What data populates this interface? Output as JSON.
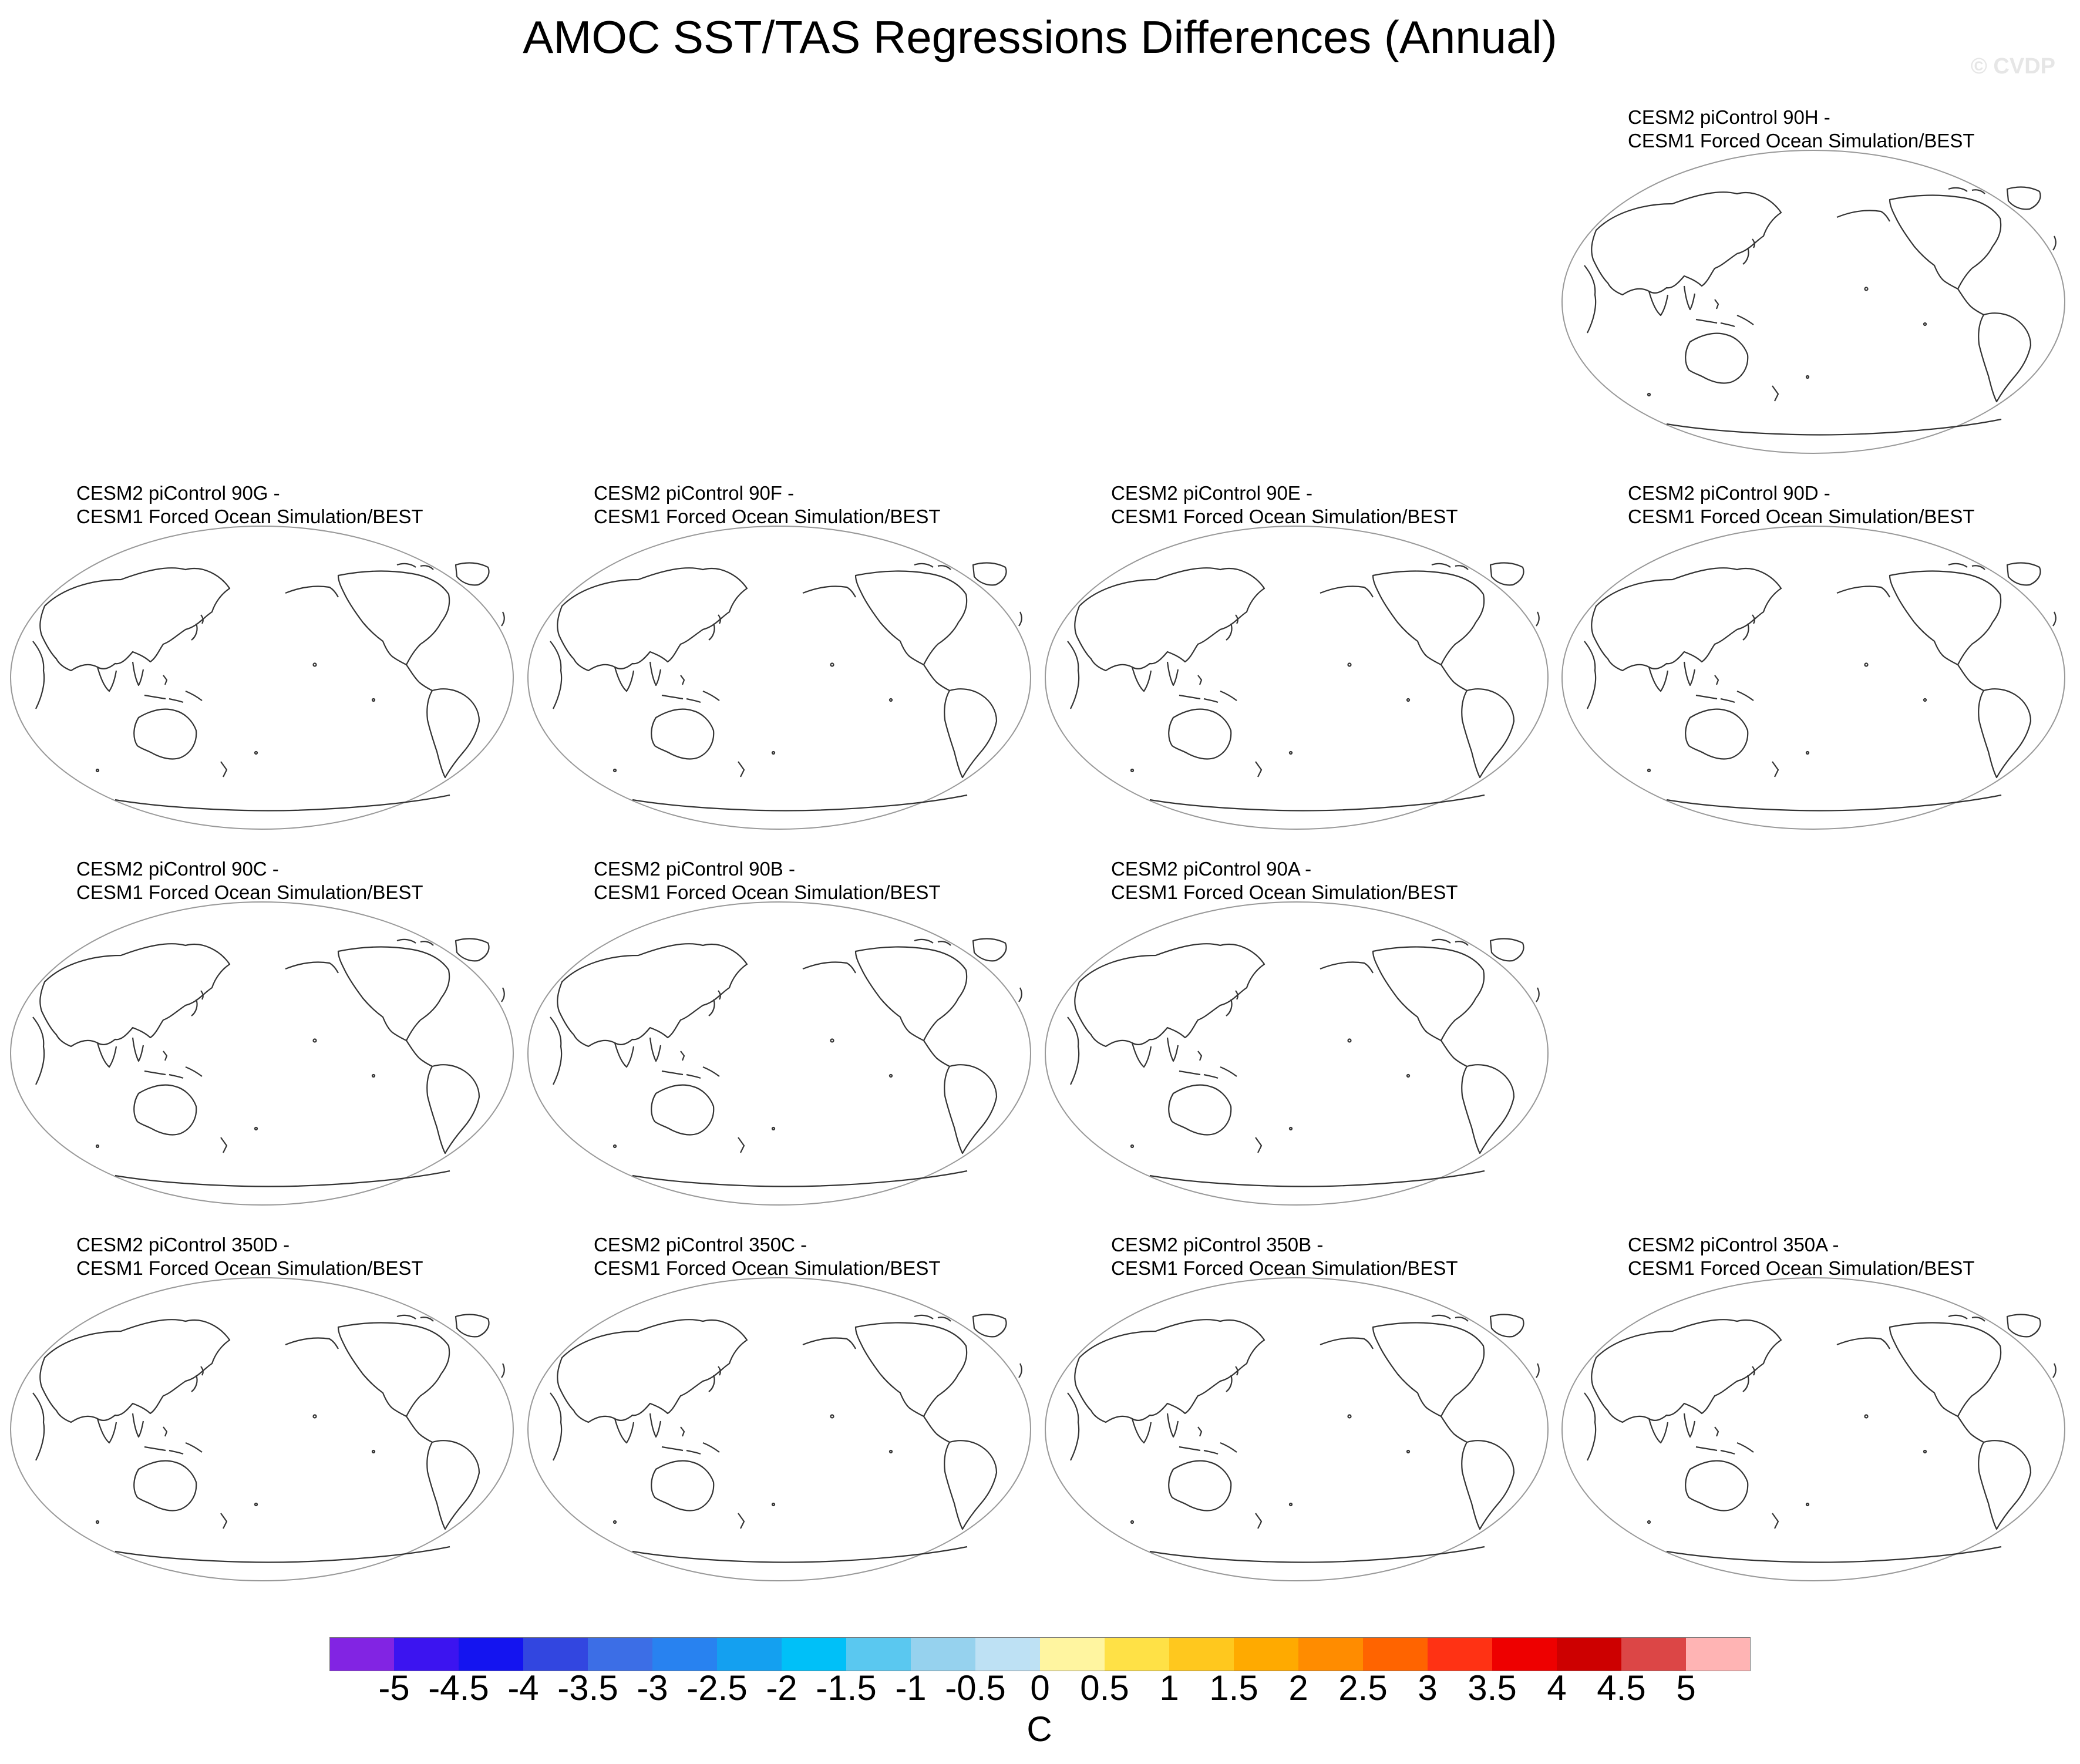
{
  "title": "AMOC SST/TAS Regressions Differences (Annual)",
  "watermark": "© CVDP",
  "panels": [
    {
      "line1": "CESM2 piControl 90H -",
      "line2": "CESM1 Forced Ocean Simulation/BEST"
    },
    {
      "line1": "CESM2 piControl 90G -",
      "line2": "CESM1 Forced Ocean Simulation/BEST"
    },
    {
      "line1": "CESM2 piControl 90F -",
      "line2": "CESM1 Forced Ocean Simulation/BEST"
    },
    {
      "line1": "CESM2 piControl 90E -",
      "line2": "CESM1 Forced Ocean Simulation/BEST"
    },
    {
      "line1": "CESM2 piControl 90D -",
      "line2": "CESM1 Forced Ocean Simulation/BEST"
    },
    {
      "line1": "CESM2 piControl 90C -",
      "line2": "CESM1 Forced Ocean Simulation/BEST"
    },
    {
      "line1": "CESM2 piControl 90B -",
      "line2": "CESM1 Forced Ocean Simulation/BEST"
    },
    {
      "line1": "CESM2 piControl 90A -",
      "line2": "CESM1 Forced Ocean Simulation/BEST"
    },
    {
      "line1": "CESM2 piControl 350D -",
      "line2": "CESM1 Forced Ocean Simulation/BEST"
    },
    {
      "line1": "CESM2 piControl 350C -",
      "line2": "CESM1 Forced Ocean Simulation/BEST"
    },
    {
      "line1": "CESM2 piControl 350B -",
      "line2": "CESM1 Forced Ocean Simulation/BEST"
    },
    {
      "line1": "CESM2 piControl 350A -",
      "line2": "CESM1 Forced Ocean Simulation/BEST"
    }
  ],
  "colorbar": {
    "units": "C",
    "tick_labels": [
      "-5",
      "-4.5",
      "-4",
      "-3.5",
      "-3",
      "-2.5",
      "-2",
      "-1.5",
      "-1",
      "-0.5",
      "0",
      "0.5",
      "1",
      "1.5",
      "2",
      "2.5",
      "3",
      "3.5",
      "4",
      "4.5",
      "5"
    ],
    "colors": [
      "#8224e3",
      "#3c14f0",
      "#1414f0",
      "#3246e0",
      "#3c6ee6",
      "#2882f0",
      "#14a0f0",
      "#00c0f8",
      "#5ac8f0",
      "#96d2ee",
      "#bee1f4",
      "#fff5a0",
      "#ffe146",
      "#ffc81e",
      "#ffaa00",
      "#ff8c00",
      "#ff6400",
      "#ff3214",
      "#ee0000",
      "#cd0000",
      "#dc4646",
      "#ffb4b4"
    ]
  }
}
